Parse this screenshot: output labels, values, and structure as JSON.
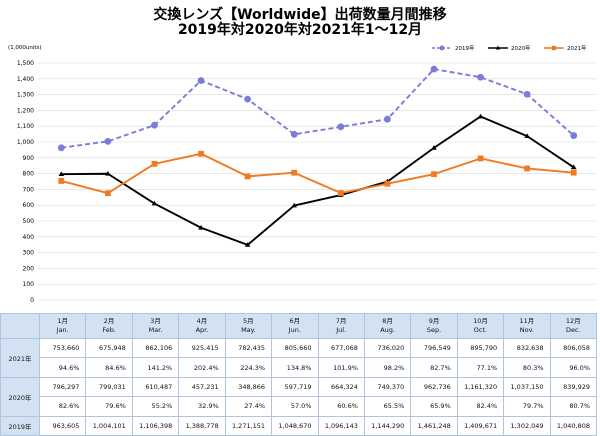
{
  "chart_data": {
    "type": "line",
    "title": "交換レンズ【Worldwide】出荷数量月間推移",
    "subtitle": "2019年対2020年対2021年1～12月",
    "ylabel": "(1,000units)",
    "ylim": [
      0,
      1500
    ],
    "y_tick_labels": [
      "0",
      "100",
      "200",
      "300",
      "400",
      "500",
      "600",
      "700",
      "800",
      "900",
      "1,000",
      "1,100",
      "1,200",
      "1,300",
      "1,400",
      "1,500"
    ],
    "categories": [
      "Jan.",
      "Feb.",
      "Mar.",
      "Apr.",
      "May.",
      "Jun.",
      "Jul.",
      "Aug.",
      "Sep.",
      "Oct.",
      "Nov.",
      "Dec."
    ],
    "grid": true,
    "legend": "top-right",
    "series": [
      {
        "name": "2019年",
        "color": "#7b7bdb",
        "dashed": true,
        "marker": "circle",
        "values": [
          963.605,
          1004.101,
          1106.398,
          1388.778,
          1271.151,
          1048.67,
          1096.143,
          1144.29,
          1461.248,
          1409.671,
          1302.049,
          1040.808
        ]
      },
      {
        "name": "2020年",
        "color": "#000000",
        "dashed": false,
        "marker": "triangle",
        "values": [
          796.297,
          799.031,
          610.487,
          457.231,
          348.866,
          597.719,
          664.324,
          749.37,
          962.736,
          1161.32,
          1037.15,
          839.929
        ]
      },
      {
        "name": "2021年",
        "color": "#f07a22",
        "dashed": false,
        "marker": "square",
        "values": [
          753.66,
          675.948,
          862.106,
          925.415,
          782.435,
          805.66,
          677.068,
          736.02,
          796.549,
          895.79,
          832.638,
          806.058
        ]
      }
    ]
  },
  "table": {
    "month_labels": [
      "1月",
      "2月",
      "3月",
      "4月",
      "5月",
      "6月",
      "7月",
      "8月",
      "9月",
      "10月",
      "11月",
      "12月"
    ],
    "rows": [
      {
        "year": "2021年",
        "values": [
          "753,660",
          "675,948",
          "862,106",
          "925,415",
          "782,435",
          "805,660",
          "677,068",
          "736,020",
          "796,549",
          "895,790",
          "832,638",
          "806,058"
        ],
        "ratios": [
          "94.6%",
          "84.6%",
          "141.2%",
          "202.4%",
          "224.3%",
          "134.8%",
          "101.9%",
          "98.2%",
          "82.7%",
          "77.1%",
          "80.3%",
          "96.0%"
        ]
      },
      {
        "year": "2020年",
        "values": [
          "796,297",
          "799,031",
          "610,487",
          "457,231",
          "348,866",
          "597,719",
          "664,324",
          "749,370",
          "962,736",
          "1,161,320",
          "1,037,150",
          "839,929"
        ],
        "ratios": [
          "82.6%",
          "79.6%",
          "55.2%",
          "32.9%",
          "27.4%",
          "57.0%",
          "60.6%",
          "65.5%",
          "65.9%",
          "82.4%",
          "79.7%",
          "80.7%"
        ]
      },
      {
        "year": "2019年",
        "values": [
          "963,605",
          "1,004,101",
          "1,106,398",
          "1,388,778",
          "1,271,151",
          "1,048,670",
          "1,096,143",
          "1,144,290",
          "1,461,248",
          "1,409,671",
          "1,302,049",
          "1,040,808"
        ]
      }
    ]
  }
}
